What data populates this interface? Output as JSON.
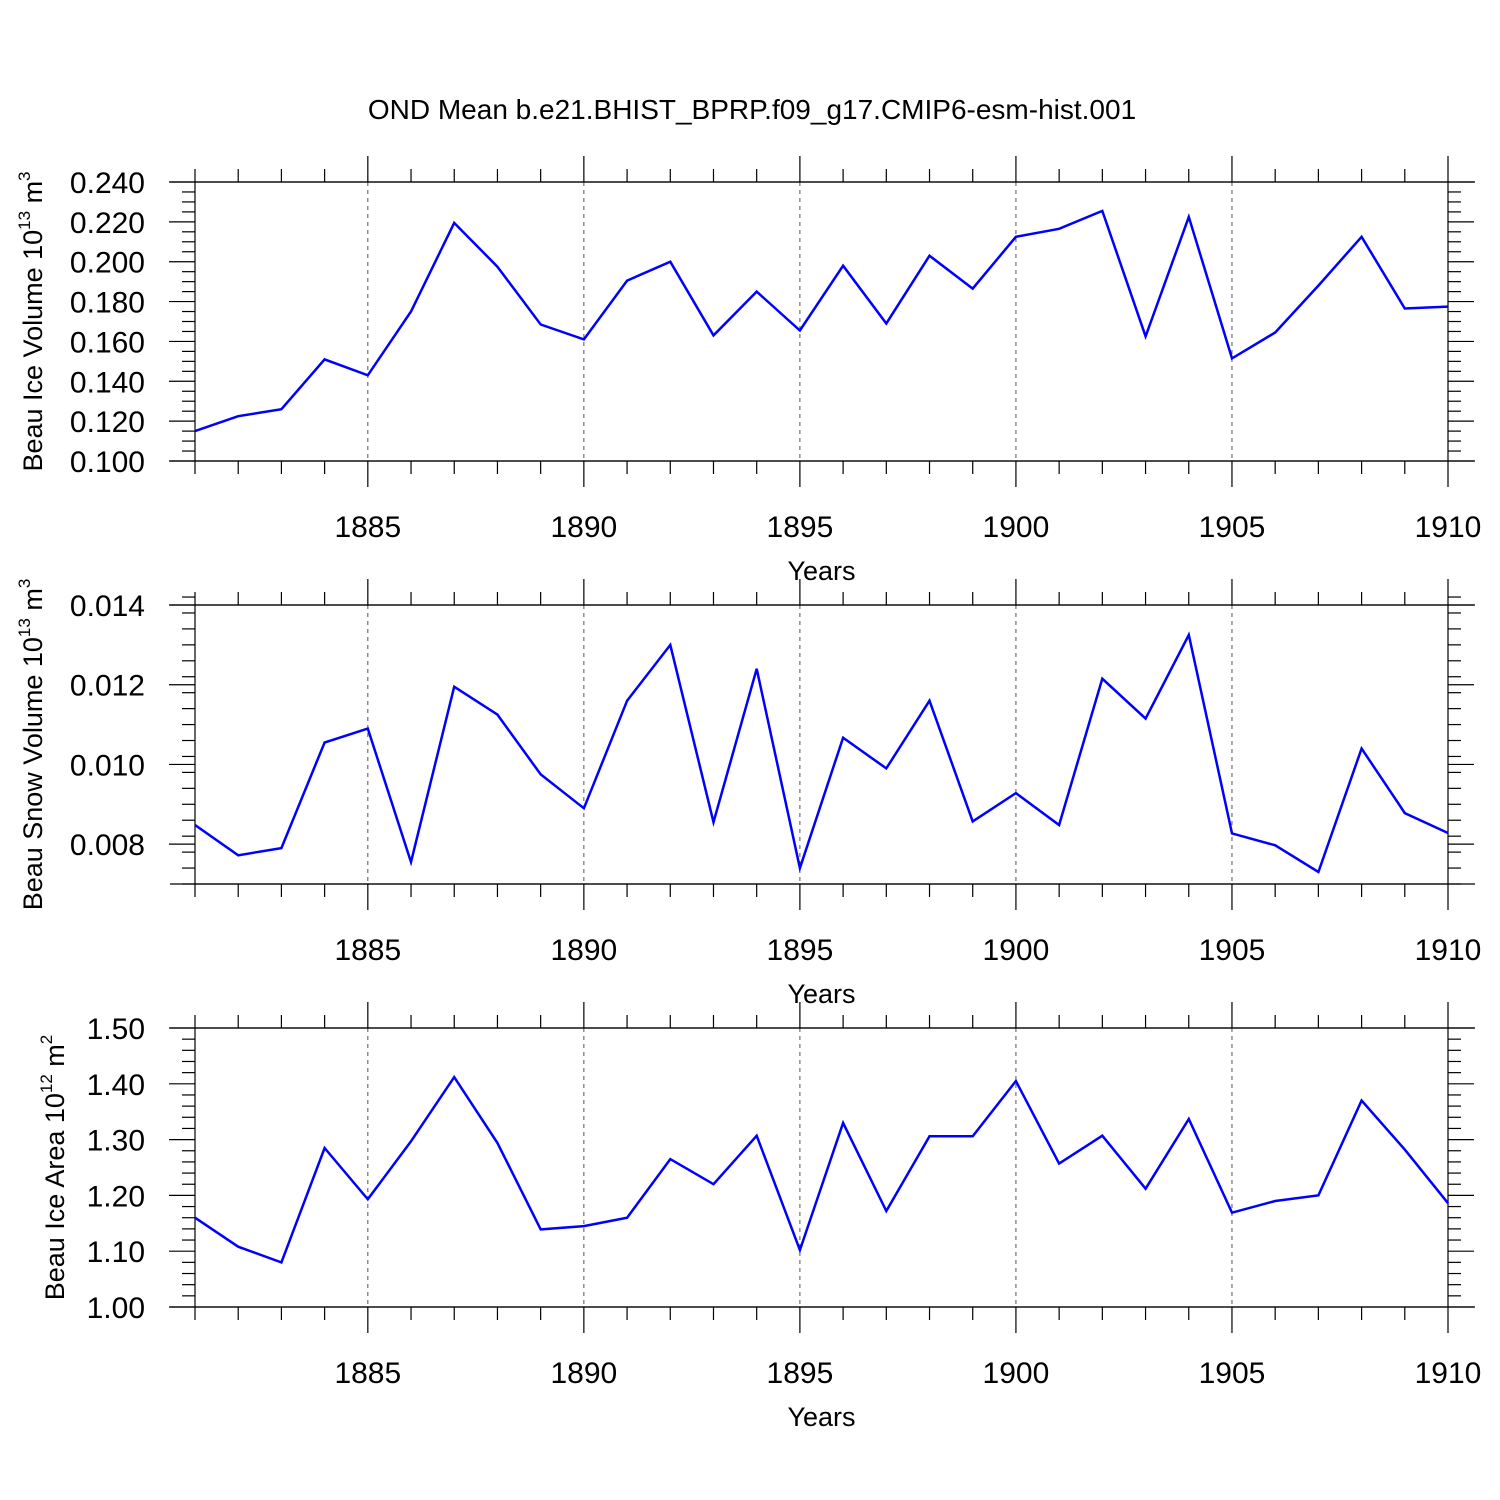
{
  "title": "OND Mean b.e21.BHIST_BPRP.f09_g17.CMIP6-esm-hist.001",
  "colors": {
    "line": "#0000ff",
    "axis": "#000000",
    "grid": "#555555"
  },
  "chart_data": [
    {
      "type": "line",
      "xlabel": "Years",
      "ylabel_text": "Beau Ice Volume 10",
      "ylabel_exp": "13",
      "ylabel_unit": " m",
      "ylabel_unit_exp": "3",
      "xlim": [
        1881,
        1910
      ],
      "ylim": [
        0.1,
        0.24
      ],
      "yticks": [
        0.1,
        0.12,
        0.14,
        0.16,
        0.18,
        0.2,
        0.22,
        0.24
      ],
      "ytick_labels": [
        "0.100",
        "0.120",
        "0.140",
        "0.160",
        "0.180",
        "0.200",
        "0.220",
        "0.240"
      ],
      "yminor_step": 0.005,
      "xticks": [
        1885,
        1890,
        1895,
        1900,
        1905,
        1910
      ],
      "xtick_labels": [
        "1885",
        "1890",
        "1895",
        "1900",
        "1905",
        "1910"
      ],
      "grid": "vertical-dashed",
      "x": [
        1881,
        1882,
        1883,
        1884,
        1885,
        1886,
        1887,
        1888,
        1889,
        1890,
        1891,
        1892,
        1893,
        1894,
        1895,
        1896,
        1897,
        1898,
        1899,
        1900,
        1901,
        1902,
        1903,
        1904,
        1905,
        1906,
        1907,
        1908,
        1909,
        1910
      ],
      "values": [
        0.115,
        0.1225,
        0.126,
        0.151,
        0.143,
        0.175,
        0.2195,
        0.1975,
        0.1685,
        0.161,
        0.1905,
        0.2,
        0.163,
        0.185,
        0.1655,
        0.198,
        0.169,
        0.203,
        0.1865,
        0.2125,
        0.2165,
        0.2255,
        0.1625,
        0.2225,
        0.1515,
        0.1645,
        0.188,
        0.2125,
        0.1765,
        0.1775
      ]
    },
    {
      "type": "line",
      "xlabel": "Years",
      "ylabel_text": "Beau Snow Volume 10",
      "ylabel_exp": "13",
      "ylabel_unit": " m",
      "ylabel_unit_exp": "3",
      "xlim": [
        1881,
        1910
      ],
      "ylim": [
        0.007,
        0.014
      ],
      "yticks": [
        0.008,
        0.01,
        0.012,
        0.014
      ],
      "ytick_labels": [
        "0.008",
        "0.010",
        "0.012",
        "0.014"
      ],
      "yminor_step": 0.0004,
      "xticks": [
        1885,
        1890,
        1895,
        1900,
        1905,
        1910
      ],
      "xtick_labels": [
        "1885",
        "1890",
        "1895",
        "1900",
        "1905",
        "1910"
      ],
      "grid": "vertical-dashed",
      "x": [
        1881,
        1882,
        1883,
        1884,
        1885,
        1886,
        1887,
        1888,
        1889,
        1890,
        1891,
        1892,
        1893,
        1894,
        1895,
        1896,
        1897,
        1898,
        1899,
        1900,
        1901,
        1902,
        1903,
        1904,
        1905,
        1906,
        1907,
        1908,
        1909,
        1910
      ],
      "values": [
        0.00848,
        0.00772,
        0.0079,
        0.01055,
        0.0109,
        0.00755,
        0.01195,
        0.01125,
        0.00975,
        0.0089,
        0.0116,
        0.013,
        0.00855,
        0.0124,
        0.0074,
        0.01067,
        0.0099,
        0.0116,
        0.00857,
        0.00928,
        0.00848,
        0.01215,
        0.01115,
        0.01325,
        0.00827,
        0.00797,
        0.0073,
        0.0104,
        0.00878,
        0.00828
      ]
    },
    {
      "type": "line",
      "xlabel": "Years",
      "ylabel_text": "Beau Ice Area 10",
      "ylabel_exp": "12",
      "ylabel_unit": " m",
      "ylabel_unit_exp": "2",
      "xlim": [
        1881,
        1910
      ],
      "ylim": [
        1.0,
        1.5
      ],
      "yticks": [
        1.0,
        1.1,
        1.2,
        1.3,
        1.4,
        1.5
      ],
      "ytick_labels": [
        "1.00",
        "1.10",
        "1.20",
        "1.30",
        "1.40",
        "1.50"
      ],
      "yminor_step": 0.02,
      "xticks": [
        1885,
        1890,
        1895,
        1900,
        1905,
        1910
      ],
      "xtick_labels": [
        "1885",
        "1890",
        "1895",
        "1900",
        "1905",
        "1910"
      ],
      "grid": "vertical-dashed",
      "x": [
        1881,
        1882,
        1883,
        1884,
        1885,
        1886,
        1887,
        1888,
        1889,
        1890,
        1891,
        1892,
        1893,
        1894,
        1895,
        1896,
        1897,
        1898,
        1899,
        1900,
        1901,
        1902,
        1903,
        1904,
        1905,
        1906,
        1907,
        1908,
        1909,
        1910
      ],
      "values": [
        1.16,
        1.108,
        1.08,
        1.285,
        1.193,
        1.297,
        1.412,
        1.294,
        1.139,
        1.145,
        1.16,
        1.265,
        1.22,
        1.307,
        1.102,
        1.33,
        1.172,
        1.306,
        1.306,
        1.405,
        1.257,
        1.307,
        1.212,
        1.337,
        1.169,
        1.19,
        1.2,
        1.37,
        1.282,
        1.186
      ]
    }
  ]
}
